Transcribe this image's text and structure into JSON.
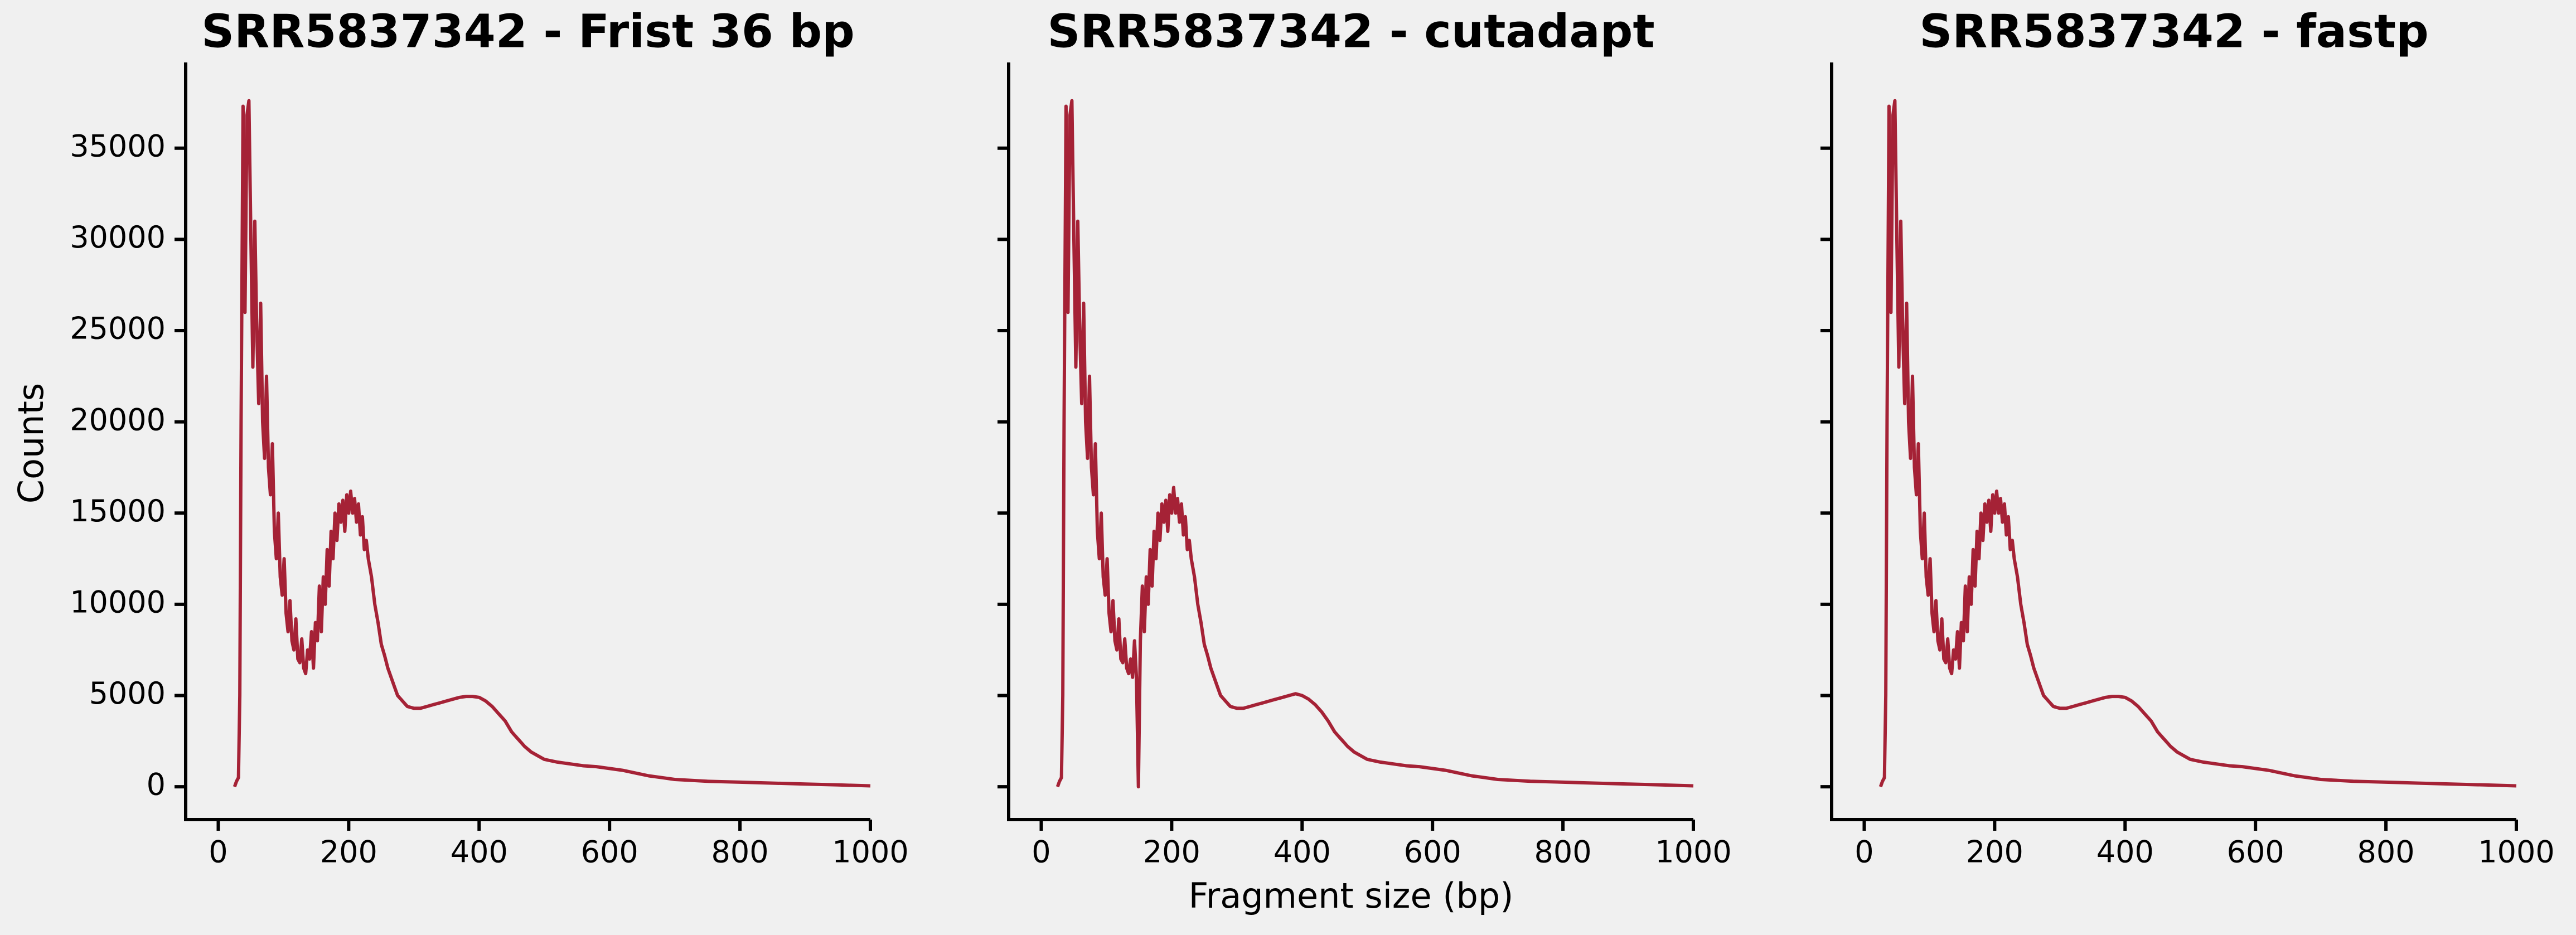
{
  "chart_data": [
    {
      "type": "line",
      "title": "SRR5837342 - Frist 36 bp",
      "ylabel": "Counts",
      "color": "#a52236",
      "xlim": [
        -50,
        1000
      ],
      "xticks": [
        0,
        200,
        400,
        600,
        800,
        1000
      ],
      "ylim": [
        -1800,
        39700
      ],
      "yticks": [
        0,
        5000,
        10000,
        15000,
        20000,
        25000,
        30000,
        35000
      ],
      "x": [
        25,
        28,
        31,
        33,
        35,
        38,
        41,
        44,
        47,
        50,
        53,
        56,
        59,
        62,
        65,
        68,
        71,
        74,
        77,
        80,
        83,
        86,
        89,
        92,
        95,
        98,
        101,
        104,
        107,
        110,
        113,
        116,
        119,
        122,
        125,
        128,
        131,
        134,
        137,
        140,
        143,
        146,
        149,
        152,
        155,
        158,
        161,
        164,
        167,
        170,
        173,
        176,
        179,
        182,
        185,
        188,
        191,
        194,
        197,
        200,
        203,
        206,
        209,
        212,
        215,
        218,
        221,
        224,
        227,
        230,
        235,
        240,
        245,
        250,
        255,
        260,
        265,
        270,
        275,
        280,
        290,
        300,
        310,
        320,
        330,
        340,
        350,
        360,
        370,
        380,
        390,
        400,
        410,
        420,
        430,
        440,
        450,
        460,
        470,
        480,
        490,
        500,
        520,
        540,
        560,
        580,
        600,
        620,
        640,
        660,
        680,
        700,
        750,
        800,
        850,
        900,
        950,
        1000
      ],
      "values": [
        0,
        300,
        500,
        5000,
        20000,
        37300,
        26000,
        36800,
        37600,
        30000,
        23000,
        31000,
        25000,
        21000,
        26500,
        20000,
        18000,
        22500,
        17500,
        16000,
        18800,
        14000,
        12500,
        15000,
        11500,
        10500,
        12500,
        9500,
        8500,
        10200,
        8000,
        7500,
        9200,
        7000,
        6800,
        8100,
        6500,
        6200,
        7500,
        7000,
        8500,
        6500,
        9000,
        8000,
        11000,
        8500,
        11500,
        10000,
        13000,
        11000,
        14000,
        12500,
        15000,
        13500,
        15500,
        14500,
        15700,
        14000,
        16000,
        15000,
        16200,
        15000,
        15800,
        14500,
        15500,
        13800,
        14800,
        13000,
        13500,
        12500,
        11500,
        10000,
        9000,
        7800,
        7200,
        6500,
        6000,
        5500,
        5000,
        4800,
        4400,
        4300,
        4300,
        4400,
        4500,
        4600,
        4700,
        4800,
        4900,
        4950,
        4950,
        4900,
        4700,
        4400,
        4000,
        3600,
        3000,
        2600,
        2200,
        1900,
        1700,
        1500,
        1350,
        1250,
        1150,
        1100,
        1000,
        900,
        750,
        600,
        500,
        400,
        300,
        250,
        200,
        150,
        100,
        50
      ]
    },
    {
      "type": "line",
      "title": "SRR5837342 - cutadapt",
      "xlabel": "Fragment size (bp)",
      "color": "#a52236",
      "xlim": [
        -50,
        1000
      ],
      "xticks": [
        0,
        200,
        400,
        600,
        800,
        1000
      ],
      "ylim": [
        -1800,
        39700
      ],
      "x": [
        25,
        28,
        31,
        33,
        35,
        38,
        41,
        44,
        47,
        50,
        53,
        56,
        59,
        62,
        65,
        68,
        71,
        74,
        77,
        80,
        83,
        86,
        89,
        92,
        95,
        98,
        101,
        104,
        107,
        110,
        113,
        116,
        119,
        122,
        125,
        128,
        131,
        134,
        137,
        140,
        143,
        146,
        149,
        152,
        155,
        158,
        161,
        164,
        167,
        170,
        173,
        176,
        179,
        182,
        185,
        188,
        191,
        194,
        197,
        200,
        203,
        206,
        209,
        212,
        215,
        218,
        221,
        224,
        227,
        230,
        235,
        240,
        245,
        250,
        255,
        260,
        265,
        270,
        275,
        280,
        290,
        300,
        310,
        320,
        330,
        340,
        350,
        360,
        370,
        380,
        390,
        400,
        410,
        420,
        430,
        440,
        450,
        460,
        470,
        480,
        490,
        500,
        520,
        540,
        560,
        580,
        600,
        620,
        640,
        660,
        680,
        700,
        750,
        800,
        850,
        900,
        950,
        1000
      ],
      "values": [
        0,
        300,
        500,
        5000,
        20000,
        37300,
        26000,
        36800,
        37600,
        30000,
        23000,
        31000,
        25000,
        21000,
        26500,
        20000,
        18000,
        22500,
        17500,
        16000,
        18800,
        14000,
        12500,
        15000,
        11500,
        10500,
        12500,
        9500,
        8500,
        10200,
        8000,
        7500,
        9200,
        7000,
        6800,
        8100,
        6500,
        6200,
        7000,
        6000,
        8000,
        6000,
        0,
        8000,
        11000,
        8500,
        11500,
        10000,
        13000,
        11000,
        14000,
        12500,
        15000,
        13500,
        15500,
        14500,
        15700,
        14000,
        16000,
        15000,
        16400,
        15000,
        15800,
        14500,
        15500,
        13800,
        14800,
        13000,
        13500,
        12500,
        11500,
        10000,
        9000,
        7800,
        7200,
        6500,
        6000,
        5500,
        5000,
        4800,
        4400,
        4300,
        4300,
        4400,
        4500,
        4600,
        4700,
        4800,
        4900,
        5000,
        5100,
        5000,
        4800,
        4500,
        4100,
        3600,
        3000,
        2600,
        2200,
        1900,
        1700,
        1500,
        1350,
        1250,
        1150,
        1100,
        1000,
        900,
        750,
        600,
        500,
        400,
        300,
        250,
        200,
        150,
        100,
        50
      ]
    },
    {
      "type": "line",
      "title": "SRR5837342 - fastp",
      "color": "#a52236",
      "xlim": [
        -50,
        1000
      ],
      "xticks": [
        0,
        200,
        400,
        600,
        800,
        1000
      ],
      "ylim": [
        -1800,
        39700
      ],
      "x": [
        25,
        28,
        31,
        33,
        35,
        38,
        41,
        44,
        47,
        50,
        53,
        56,
        59,
        62,
        65,
        68,
        71,
        74,
        77,
        80,
        83,
        86,
        89,
        92,
        95,
        98,
        101,
        104,
        107,
        110,
        113,
        116,
        119,
        122,
        125,
        128,
        131,
        134,
        137,
        140,
        143,
        146,
        149,
        152,
        155,
        158,
        161,
        164,
        167,
        170,
        173,
        176,
        179,
        182,
        185,
        188,
        191,
        194,
        197,
        200,
        203,
        206,
        209,
        212,
        215,
        218,
        221,
        224,
        227,
        230,
        235,
        240,
        245,
        250,
        255,
        260,
        265,
        270,
        275,
        280,
        290,
        300,
        310,
        320,
        330,
        340,
        350,
        360,
        370,
        380,
        390,
        400,
        410,
        420,
        430,
        440,
        450,
        460,
        470,
        480,
        490,
        500,
        520,
        540,
        560,
        580,
        600,
        620,
        640,
        660,
        680,
        700,
        750,
        800,
        850,
        900,
        950,
        1000
      ],
      "values": [
        0,
        300,
        500,
        5000,
        20000,
        37300,
        26000,
        36800,
        37600,
        30000,
        23000,
        31000,
        25000,
        21000,
        26500,
        20000,
        18000,
        22500,
        17500,
        16000,
        18800,
        14000,
        12500,
        15000,
        11500,
        10500,
        12500,
        9500,
        8500,
        10200,
        8000,
        7500,
        9200,
        7000,
        6800,
        8100,
        6500,
        6200,
        7500,
        7000,
        8500,
        6500,
        9000,
        8000,
        11000,
        8500,
        11500,
        10000,
        13000,
        11000,
        14000,
        12500,
        15000,
        13500,
        15500,
        14500,
        15700,
        14000,
        16000,
        15000,
        16200,
        15000,
        15800,
        14500,
        15500,
        13800,
        14800,
        13000,
        13500,
        12500,
        11500,
        10000,
        9000,
        7800,
        7200,
        6500,
        6000,
        5500,
        5000,
        4800,
        4400,
        4300,
        4300,
        4400,
        4500,
        4600,
        4700,
        4800,
        4900,
        4950,
        4950,
        4900,
        4700,
        4400,
        4000,
        3600,
        3000,
        2600,
        2200,
        1900,
        1700,
        1500,
        1350,
        1250,
        1150,
        1100,
        1000,
        900,
        750,
        600,
        500,
        400,
        300,
        250,
        200,
        150,
        100,
        50
      ]
    }
  ]
}
